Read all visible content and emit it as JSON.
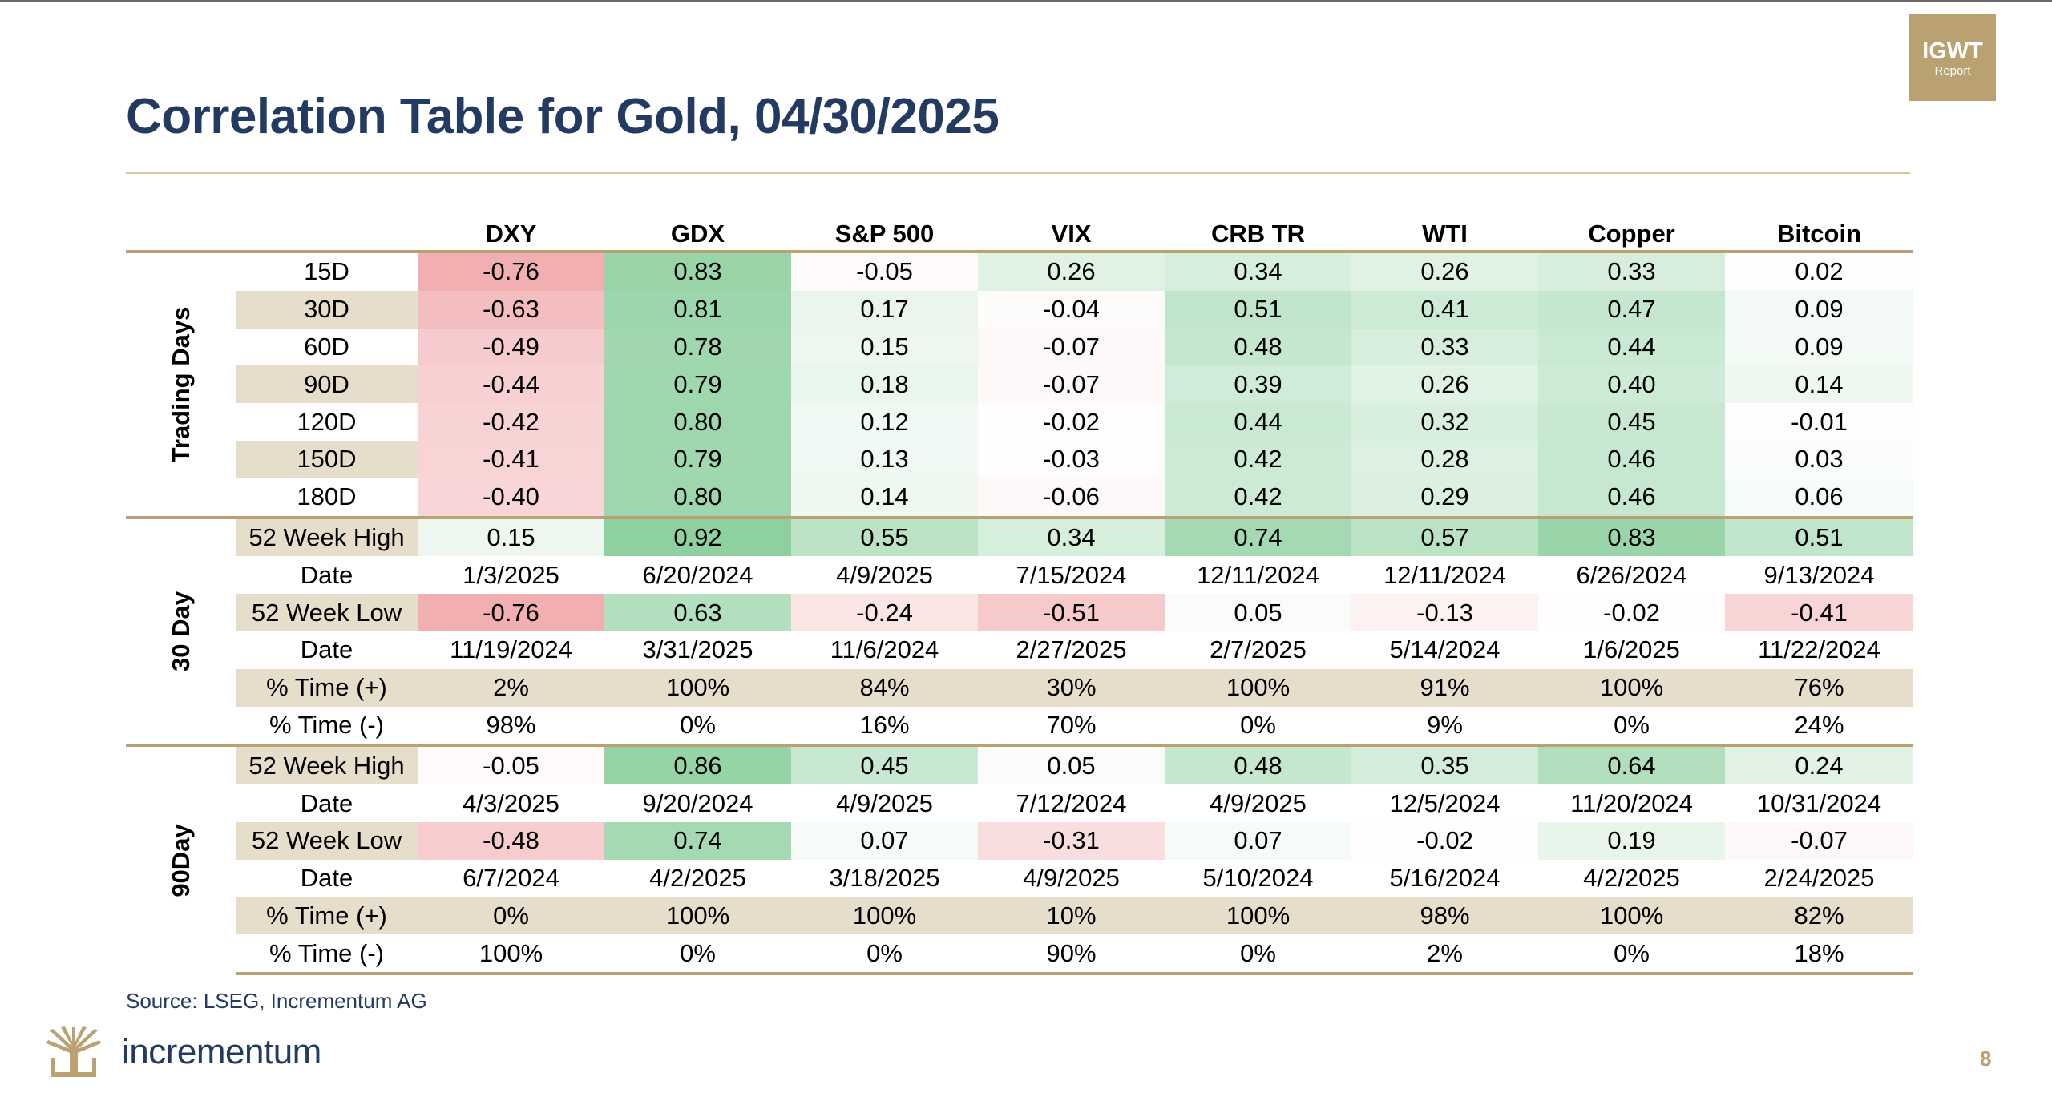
{
  "title": "Correlation Table for Gold, 04/30/2025",
  "badge": {
    "line1": "IGWT",
    "line2": "Report"
  },
  "columns": [
    "DXY",
    "GDX",
    "S&P 500",
    "VIX",
    "CRB TR",
    "WTI",
    "Copper",
    "Bitcoin"
  ],
  "groups": [
    {
      "label": "Trading Days",
      "rows": [
        {
          "label": "15D",
          "values": [
            "-0.76",
            "0.83",
            "-0.05",
            "0.26",
            "0.34",
            "0.26",
            "0.33",
            "0.02"
          ]
        },
        {
          "label": "30D",
          "values": [
            "-0.63",
            "0.81",
            "0.17",
            "-0.04",
            "0.51",
            "0.41",
            "0.47",
            "0.09"
          ]
        },
        {
          "label": "60D",
          "values": [
            "-0.49",
            "0.78",
            "0.15",
            "-0.07",
            "0.48",
            "0.33",
            "0.44",
            "0.09"
          ]
        },
        {
          "label": "90D",
          "values": [
            "-0.44",
            "0.79",
            "0.18",
            "-0.07",
            "0.39",
            "0.26",
            "0.40",
            "0.14"
          ]
        },
        {
          "label": "120D",
          "values": [
            "-0.42",
            "0.80",
            "0.12",
            "-0.02",
            "0.44",
            "0.32",
            "0.45",
            "-0.01"
          ]
        },
        {
          "label": "150D",
          "values": [
            "-0.41",
            "0.79",
            "0.13",
            "-0.03",
            "0.42",
            "0.28",
            "0.46",
            "0.03"
          ]
        },
        {
          "label": "180D",
          "values": [
            "-0.40",
            "0.80",
            "0.14",
            "-0.06",
            "0.42",
            "0.29",
            "0.46",
            "0.06"
          ]
        }
      ]
    },
    {
      "label": "30 Day",
      "rows": [
        {
          "label": "52 Week High",
          "values": [
            "0.15",
            "0.92",
            "0.55",
            "0.34",
            "0.74",
            "0.57",
            "0.83",
            "0.51"
          ]
        },
        {
          "label": "Date",
          "values": [
            "1/3/2025",
            "6/20/2024",
            "4/9/2025",
            "7/15/2024",
            "12/11/2024",
            "12/11/2024",
            "6/26/2024",
            "9/13/2024"
          ]
        },
        {
          "label": "52 Week Low",
          "values": [
            "-0.76",
            "0.63",
            "-0.24",
            "-0.51",
            "0.05",
            "-0.13",
            "-0.02",
            "-0.41"
          ]
        },
        {
          "label": "Date",
          "values": [
            "11/19/2024",
            "3/31/2025",
            "11/6/2024",
            "2/27/2025",
            "2/7/2025",
            "5/14/2024",
            "1/6/2025",
            "11/22/2024"
          ]
        },
        {
          "label": "% Time (+)",
          "values": [
            "2%",
            "100%",
            "84%",
            "30%",
            "100%",
            "91%",
            "100%",
            "76%"
          ]
        },
        {
          "label": "% Time (-)",
          "values": [
            "98%",
            "0%",
            "16%",
            "70%",
            "0%",
            "9%",
            "0%",
            "24%"
          ]
        }
      ]
    },
    {
      "label": "90Day",
      "rows": [
        {
          "label": "52 Week High",
          "values": [
            "-0.05",
            "0.86",
            "0.45",
            "0.05",
            "0.48",
            "0.35",
            "0.64",
            "0.24"
          ]
        },
        {
          "label": "Date",
          "values": [
            "4/3/2025",
            "9/20/2024",
            "4/9/2025",
            "7/12/2024",
            "4/9/2025",
            "12/5/2024",
            "11/20/2024",
            "10/31/2024"
          ]
        },
        {
          "label": "52 Week Low",
          "values": [
            "-0.48",
            "0.74",
            "0.07",
            "-0.31",
            "0.07",
            "-0.02",
            "0.19",
            "-0.07"
          ]
        },
        {
          "label": "Date",
          "values": [
            "6/7/2024",
            "4/2/2025",
            "3/18/2025",
            "4/9/2025",
            "5/10/2024",
            "5/16/2024",
            "4/2/2025",
            "2/24/2025"
          ]
        },
        {
          "label": "% Time (+)",
          "values": [
            "0%",
            "100%",
            "100%",
            "10%",
            "100%",
            "98%",
            "100%",
            "82%"
          ]
        },
        {
          "label": "% Time (-)",
          "values": [
            "100%",
            "0%",
            "0%",
            "90%",
            "0%",
            "2%",
            "0%",
            "18%"
          ]
        }
      ]
    }
  ],
  "colors": {
    "positive": "#63be7b",
    "negative": "#e8787c",
    "gold": "#b9a171",
    "label_shade": "#e6ddca",
    "title": "#233a63"
  },
  "source": "Source: LSEG, Incrementum AG",
  "brand": "incrementum",
  "page_number": "8"
}
